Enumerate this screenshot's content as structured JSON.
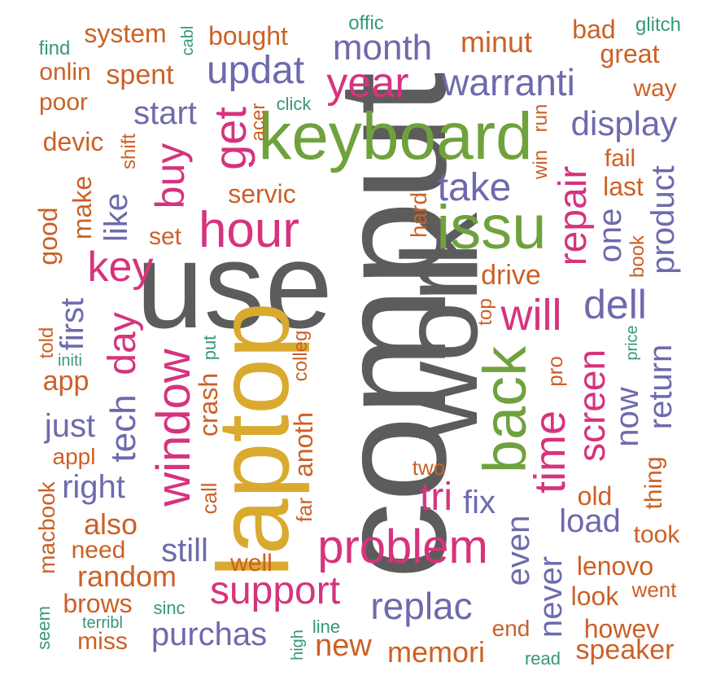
{
  "palette": {
    "gray": "#5c5c5c",
    "gold": "#d9aa2e",
    "green": "#6fa23d",
    "magenta": "#d6337e",
    "purple": "#6e6aad",
    "orange": "#cc6026",
    "teal": "#38977a"
  },
  "words": [
    {
      "text": "comput",
      "color": "gray"
    },
    {
      "text": "use",
      "color": "gray"
    },
    {
      "text": "work",
      "color": "gray"
    },
    {
      "text": "laptop",
      "color": "gold"
    },
    {
      "text": "keyboard",
      "color": "green"
    },
    {
      "text": "issu",
      "color": "green"
    },
    {
      "text": "back",
      "color": "green"
    },
    {
      "text": "hour",
      "color": "magenta"
    },
    {
      "text": "year",
      "color": "magenta"
    },
    {
      "text": "get",
      "color": "magenta"
    },
    {
      "text": "key",
      "color": "magenta"
    },
    {
      "text": "buy",
      "color": "magenta"
    },
    {
      "text": "day",
      "color": "magenta"
    },
    {
      "text": "window",
      "color": "magenta"
    },
    {
      "text": "repair",
      "color": "magenta"
    },
    {
      "text": "will",
      "color": "magenta"
    },
    {
      "text": "problem",
      "color": "magenta"
    },
    {
      "text": "support",
      "color": "magenta"
    },
    {
      "text": "tri",
      "color": "magenta"
    },
    {
      "text": "time",
      "color": "magenta"
    },
    {
      "text": "screen",
      "color": "magenta"
    },
    {
      "text": "updat",
      "color": "purple"
    },
    {
      "text": "month",
      "color": "purple"
    },
    {
      "text": "warranti",
      "color": "purple"
    },
    {
      "text": "start",
      "color": "purple"
    },
    {
      "text": "display",
      "color": "purple"
    },
    {
      "text": "take",
      "color": "purple"
    },
    {
      "text": "like",
      "color": "purple"
    },
    {
      "text": "product",
      "color": "purple"
    },
    {
      "text": "one",
      "color": "purple"
    },
    {
      "text": "dell",
      "color": "purple"
    },
    {
      "text": "tech",
      "color": "purple"
    },
    {
      "text": "first",
      "color": "purple"
    },
    {
      "text": "just",
      "color": "purple"
    },
    {
      "text": "right",
      "color": "purple"
    },
    {
      "text": "fix",
      "color": "purple"
    },
    {
      "text": "now",
      "color": "purple"
    },
    {
      "text": "return",
      "color": "purple"
    },
    {
      "text": "load",
      "color": "purple"
    },
    {
      "text": "still",
      "color": "purple"
    },
    {
      "text": "even",
      "color": "purple"
    },
    {
      "text": "never",
      "color": "purple"
    },
    {
      "text": "replac",
      "color": "purple"
    },
    {
      "text": "purchas",
      "color": "purple"
    },
    {
      "text": "system",
      "color": "orange"
    },
    {
      "text": "bought",
      "color": "orange"
    },
    {
      "text": "minut",
      "color": "orange"
    },
    {
      "text": "bad",
      "color": "orange"
    },
    {
      "text": "great",
      "color": "orange"
    },
    {
      "text": "way",
      "color": "orange"
    },
    {
      "text": "onlin",
      "color": "orange"
    },
    {
      "text": "spent",
      "color": "orange"
    },
    {
      "text": "poor",
      "color": "orange"
    },
    {
      "text": "devic",
      "color": "orange"
    },
    {
      "text": "shift",
      "color": "orange"
    },
    {
      "text": "acer",
      "color": "orange"
    },
    {
      "text": "win",
      "color": "orange"
    },
    {
      "text": "run",
      "color": "orange"
    },
    {
      "text": "fail",
      "color": "orange"
    },
    {
      "text": "last",
      "color": "orange"
    },
    {
      "text": "servic",
      "color": "orange"
    },
    {
      "text": "make",
      "color": "orange"
    },
    {
      "text": "good",
      "color": "orange"
    },
    {
      "text": "set",
      "color": "orange"
    },
    {
      "text": "hard",
      "color": "orange"
    },
    {
      "text": "drive",
      "color": "orange"
    },
    {
      "text": "top",
      "color": "orange"
    },
    {
      "text": "book",
      "color": "orange"
    },
    {
      "text": "told",
      "color": "orange"
    },
    {
      "text": "app",
      "color": "orange"
    },
    {
      "text": "crash",
      "color": "orange"
    },
    {
      "text": "colleg",
      "color": "orange"
    },
    {
      "text": "anoth",
      "color": "orange"
    },
    {
      "text": "pro",
      "color": "orange"
    },
    {
      "text": "appl",
      "color": "orange"
    },
    {
      "text": "two",
      "color": "orange"
    },
    {
      "text": "far",
      "color": "orange"
    },
    {
      "text": "call",
      "color": "orange"
    },
    {
      "text": "also",
      "color": "orange"
    },
    {
      "text": "old",
      "color": "orange"
    },
    {
      "text": "thing",
      "color": "orange"
    },
    {
      "text": "took",
      "color": "orange"
    },
    {
      "text": "macbook",
      "color": "orange"
    },
    {
      "text": "need",
      "color": "orange"
    },
    {
      "text": "well",
      "color": "orange"
    },
    {
      "text": "lenovo",
      "color": "orange"
    },
    {
      "text": "random",
      "color": "orange"
    },
    {
      "text": "look",
      "color": "orange"
    },
    {
      "text": "brows",
      "color": "orange"
    },
    {
      "text": "end",
      "color": "orange"
    },
    {
      "text": "howev",
      "color": "orange"
    },
    {
      "text": "miss",
      "color": "orange"
    },
    {
      "text": "new",
      "color": "orange"
    },
    {
      "text": "memori",
      "color": "orange"
    },
    {
      "text": "speaker",
      "color": "orange"
    },
    {
      "text": "went",
      "color": "orange"
    },
    {
      "text": "offic",
      "color": "teal"
    },
    {
      "text": "glitch",
      "color": "teal"
    },
    {
      "text": "find",
      "color": "teal"
    },
    {
      "text": "cabl",
      "color": "teal"
    },
    {
      "text": "click",
      "color": "teal"
    },
    {
      "text": "initi",
      "color": "teal"
    },
    {
      "text": "put",
      "color": "teal"
    },
    {
      "text": "price",
      "color": "teal"
    },
    {
      "text": "sinc",
      "color": "teal"
    },
    {
      "text": "seem",
      "color": "teal"
    },
    {
      "text": "terribl",
      "color": "teal"
    },
    {
      "text": "high",
      "color": "teal"
    },
    {
      "text": "line",
      "color": "teal"
    },
    {
      "text": "read",
      "color": "teal"
    }
  ]
}
